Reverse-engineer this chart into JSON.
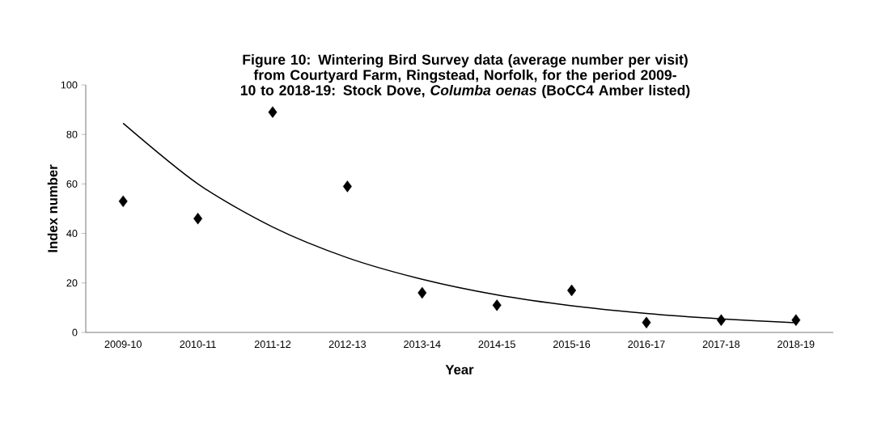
{
  "chart_data": {
    "type": "scatter",
    "title": "Figure 10: Wintering Bird Survey data (average number per visit) from Courtyard Farm, Ringstead, Norfolk, for the period 2009-10 to 2018-19: Stock Dove, *Columba oenas* (BoCC4 Amber listed)",
    "xlabel": "Year",
    "ylabel": "Index number",
    "categories": [
      "2009-10",
      "2010-11",
      "2011-12",
      "2012-13",
      "2013-14",
      "2014-15",
      "2015-16",
      "2016-17",
      "2017-18",
      "2018-19"
    ],
    "series": [
      {
        "color": "#000000",
        "marker": "diamond",
        "values": [
          53,
          46,
          89,
          59,
          16,
          11,
          17,
          4,
          5,
          5
        ]
      },
      {
        "type": "line",
        "color": "#000000",
        "marker": "none",
        "line_style": "solid",
        "values": [
          84.5,
          60,
          42.6,
          30.2,
          21.5,
          15.2,
          10.8,
          7.7,
          5.5,
          3.9
        ]
      }
    ],
    "ylim": [
      0,
      100
    ],
    "yticks": [
      0,
      20,
      40,
      60,
      80,
      100
    ],
    "grid": false
  }
}
